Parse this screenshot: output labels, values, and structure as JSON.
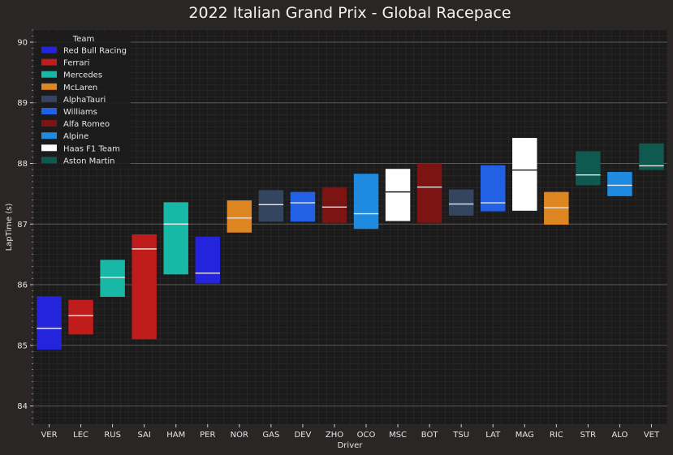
{
  "chart_data": {
    "type": "box",
    "title": "2022 Italian Grand Prix - Global Racepace",
    "xlabel": "Driver",
    "ylabel": "LapTime (s)",
    "ylim": [
      83.7,
      90.2
    ],
    "yticks": [
      84,
      85,
      86,
      87,
      88,
      89,
      90
    ],
    "grid": true,
    "legend": {
      "title": "Team",
      "placement": "top-left",
      "entries": [
        {
          "name": "Red Bull Racing",
          "color": "#2424dd"
        },
        {
          "name": "Ferrari",
          "color": "#c01c1c"
        },
        {
          "name": "Mercedes",
          "color": "#17b8a6"
        },
        {
          "name": "McLaren",
          "color": "#de8622"
        },
        {
          "name": "AlphaTauri",
          "color": "#34465f"
        },
        {
          "name": "Williams",
          "color": "#2260e5"
        },
        {
          "name": "Alfa Romeo",
          "color": "#7c1414"
        },
        {
          "name": "Alpine",
          "color": "#1f8be0"
        },
        {
          "name": "Haas F1 Team",
          "color": "#ffffff"
        },
        {
          "name": "Aston Martin",
          "color": "#0f5a50"
        }
      ]
    },
    "boxes": [
      {
        "driver": "VER",
        "team": "Red Bull Racing",
        "q1": 84.93,
        "median": 85.28,
        "q3": 85.81
      },
      {
        "driver": "LEC",
        "team": "Ferrari",
        "q1": 85.18,
        "median": 85.49,
        "q3": 85.75
      },
      {
        "driver": "RUS",
        "team": "Mercedes",
        "q1": 85.8,
        "median": 86.12,
        "q3": 86.41
      },
      {
        "driver": "SAI",
        "team": "Ferrari",
        "q1": 85.1,
        "median": 86.59,
        "q3": 86.83
      },
      {
        "driver": "HAM",
        "team": "Mercedes",
        "q1": 86.17,
        "median": 87.0,
        "q3": 87.36
      },
      {
        "driver": "PER",
        "team": "Red Bull Racing",
        "q1": 86.02,
        "median": 86.19,
        "q3": 86.79
      },
      {
        "driver": "NOR",
        "team": "McLaren",
        "q1": 86.86,
        "median": 87.1,
        "q3": 87.39
      },
      {
        "driver": "GAS",
        "team": "AlphaTauri",
        "q1": 87.04,
        "median": 87.32,
        "q3": 87.56
      },
      {
        "driver": "DEV",
        "team": "Williams",
        "q1": 87.04,
        "median": 87.35,
        "q3": 87.53
      },
      {
        "driver": "ZHO",
        "team": "Alfa Romeo",
        "q1": 87.02,
        "median": 87.28,
        "q3": 87.61
      },
      {
        "driver": "OCO",
        "team": "Alpine",
        "q1": 86.92,
        "median": 87.17,
        "q3": 87.83
      },
      {
        "driver": "MSC",
        "team": "Haas F1 Team",
        "q1": 87.05,
        "median": 87.53,
        "q3": 87.91
      },
      {
        "driver": "BOT",
        "team": "Alfa Romeo",
        "q1": 87.02,
        "median": 87.61,
        "q3": 88.0
      },
      {
        "driver": "TSU",
        "team": "AlphaTauri",
        "q1": 87.14,
        "median": 87.33,
        "q3": 87.57
      },
      {
        "driver": "LAT",
        "team": "Williams",
        "q1": 87.21,
        "median": 87.35,
        "q3": 87.97
      },
      {
        "driver": "MAG",
        "team": "Haas F1 Team",
        "q1": 87.22,
        "median": 87.89,
        "q3": 88.42
      },
      {
        "driver": "RIC",
        "team": "McLaren",
        "q1": 86.99,
        "median": 87.27,
        "q3": 87.53
      },
      {
        "driver": "STR",
        "team": "Aston Martin",
        "q1": 87.64,
        "median": 87.81,
        "q3": 88.2
      },
      {
        "driver": "ALO",
        "team": "Alpine",
        "q1": 87.46,
        "median": 87.64,
        "q3": 87.86
      },
      {
        "driver": "VET",
        "team": "Aston Martin",
        "q1": 87.89,
        "median": 87.96,
        "q3": 88.33
      }
    ]
  }
}
